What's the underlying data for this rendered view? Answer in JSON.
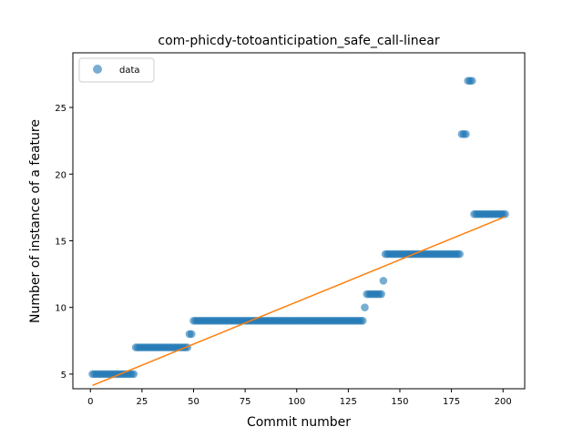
{
  "chart_data": {
    "type": "scatter",
    "title": "com-phicdy-totoanticipation_safe_call-linear",
    "xlabel": "Commit number",
    "ylabel": "Number of instance of a feature",
    "xlim": [
      -8.5,
      210.5
    ],
    "ylim": [
      3.9,
      29.1
    ],
    "xticks": [
      0,
      25,
      50,
      75,
      100,
      125,
      150,
      175,
      200
    ],
    "yticks": [
      5,
      10,
      15,
      20,
      25
    ],
    "grid": false,
    "legend": {
      "placement": "top-left",
      "entries": [
        "data"
      ]
    },
    "colors": {
      "data": "#1f77b4",
      "fit": "#ff7f0e"
    },
    "series": [
      {
        "name": "data",
        "kind": "scatter",
        "segments": [
          {
            "x_from": 1,
            "x_to": 21,
            "y": 5
          },
          {
            "x_from": 22,
            "x_to": 47,
            "y": 7
          },
          {
            "x_from": 48,
            "x_to": 49,
            "y": 8
          },
          {
            "x_from": 50,
            "x_to": 132,
            "y": 9
          },
          {
            "x_from": 133,
            "x_to": 133,
            "y": 10
          },
          {
            "x_from": 134,
            "x_to": 141,
            "y": 11
          },
          {
            "x_from": 142,
            "x_to": 142,
            "y": 12
          },
          {
            "x_from": 143,
            "x_to": 179,
            "y": 14
          },
          {
            "x_from": 180,
            "x_to": 182,
            "y": 23
          },
          {
            "x_from": 183,
            "x_to": 185,
            "y": 27
          },
          {
            "x_from": 186,
            "x_to": 201,
            "y": 17
          }
        ]
      },
      {
        "kind": "line",
        "x": [
          1,
          201
        ],
        "y": [
          4.15,
          16.8
        ]
      }
    ]
  }
}
